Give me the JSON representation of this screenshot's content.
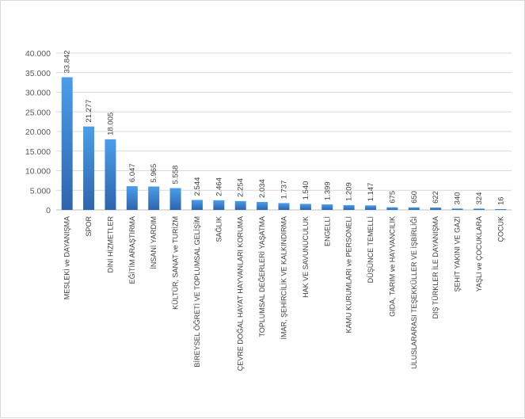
{
  "chart_data": {
    "type": "bar",
    "title": "",
    "xlabel": "",
    "ylabel": "",
    "ylim": [
      0,
      40000
    ],
    "grid": true,
    "legend": "none",
    "y_tick_values": [
      0,
      5000,
      10000,
      15000,
      20000,
      25000,
      30000,
      35000,
      40000
    ],
    "y_tick_labels": [
      "0",
      "5.000",
      "10.000",
      "15.000",
      "20.000",
      "25.000",
      "30.000",
      "35.000",
      "40.000"
    ],
    "categories": [
      "MESLEKİ ve DAYANIŞMA",
      "SPOR",
      "DİNİ HİZMETLER",
      "EĞİTİM ARAŞTIRMA",
      "İNSANİ YARDIM",
      "KÜLTÜR, SANAT ve TURİZM",
      "BİREYSEL ÖĞRETİ VE TOPLUMSAL GELİŞİM",
      "SAĞLIK",
      "ÇEVRE DOĞAL HAYAT HAYVANLARI KORUMA",
      "TOPLUMSAL DEĞERLERİ YAŞATMA",
      "İMAR, ŞEHİRCİLİK VE KALKINDIRMA",
      "HAK VE SAVUNUCULUK",
      "ENGELLİ",
      "KAMU KURUMLARI ve PERSONELİ",
      "DÜŞÜNCE TEMELLİ",
      "GIDA, TARIM ve HAYVANCILIK",
      "ULUSLARARASI TEŞEKKÜLLER VE İŞBİRLİĞİ",
      "DIŞ TÜRKLER İLE DAYANIŞMA",
      "ŞEHİT YAKINI VE GAZİ",
      "YAŞLI ve ÇOCUKLARA",
      "ÇOCUK"
    ],
    "values": [
      33842,
      21277,
      18005,
      6047,
      5965,
      5558,
      2544,
      2464,
      2254,
      2034,
      1737,
      1540,
      1399,
      1209,
      1147,
      675,
      650,
      622,
      340,
      324,
      16
    ],
    "value_labels": [
      "33.842",
      "21.277",
      "18.005",
      "6.047",
      "5.965",
      "5.558",
      "2.544",
      "2.464",
      "2.254",
      "2.034",
      "1.737",
      "1.540",
      "1.399",
      "1.209",
      "1.147",
      "675",
      "650",
      "622",
      "340",
      "324",
      "16"
    ],
    "colors": {
      "bar_top": "#4a9eea",
      "bar_bottom": "#2f64ae",
      "grid": "#d9d9d9",
      "axis": "#bfbfbf"
    }
  }
}
